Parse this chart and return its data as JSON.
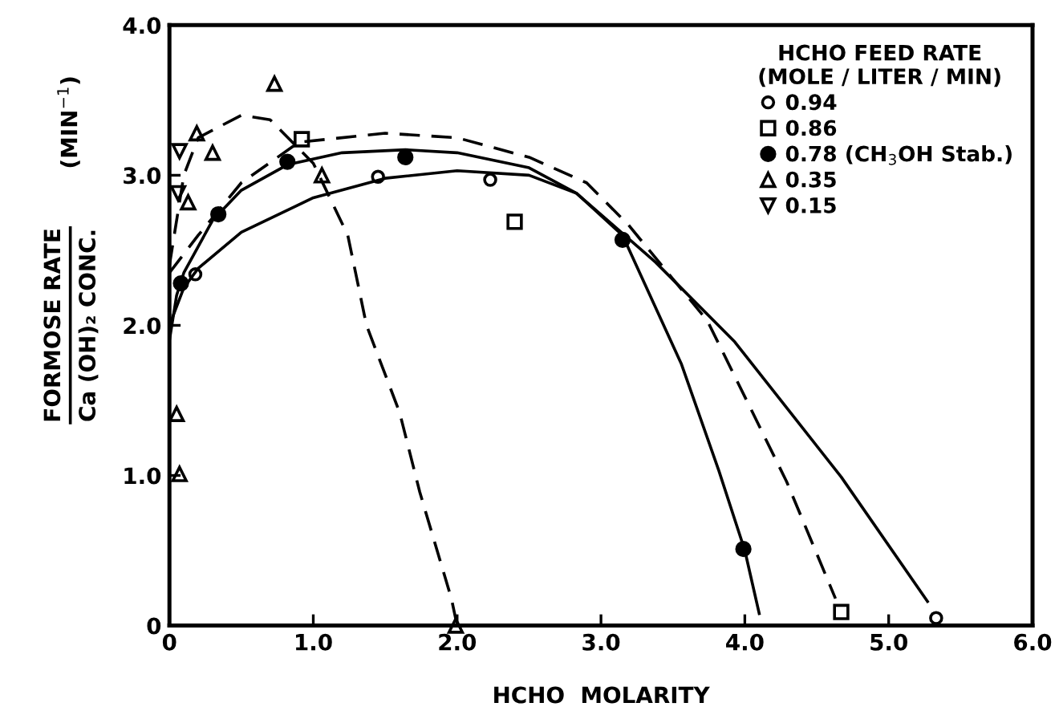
{
  "chart_data": {
    "type": "scatter",
    "xlabel": "HCHO  MOLARITY",
    "ylabel": "FORMOSE RATE\nCa (OH)₂ CONC.",
    "annotations": [
      "(MIN$^{−1}$)"
    ],
    "legend_title": "HCHO FEED RATE\n(MOLE / LITER / MIN)",
    "legend": "top right",
    "grid": false,
    "xlim": [
      0,
      6
    ],
    "ylim": [
      0,
      4
    ],
    "xticks": [
      0,
      {
        "value": 1,
        "label": "1.0"
      },
      {
        "value": 2,
        "label": "2.0"
      },
      {
        "value": 3,
        "label": "3.0"
      },
      {
        "value": 4,
        "label": "4.0"
      },
      {
        "value": 5,
        "label": "5.0"
      },
      {
        "value": 6,
        "label": "6.0"
      }
    ],
    "yticks": [
      0,
      {
        "value": 1,
        "label": "1.0"
      },
      {
        "value": 2,
        "label": "2.0"
      },
      {
        "value": 3,
        "label": "3.0"
      },
      {
        "value": 4,
        "label": "4.0"
      }
    ],
    "series": [
      {
        "name": "0.94",
        "marker": "circle_open",
        "color": "#000000",
        "x": [
          0.18,
          1.45,
          2.23,
          5.33
        ],
        "values": [
          2.34,
          2.99,
          2.97,
          0.05
        ]
      },
      {
        "name": "0.86",
        "marker": "square",
        "color": "#000000",
        "x": [
          0.92,
          2.4,
          4.67
        ],
        "values": [
          3.24,
          2.69,
          0.09
        ]
      },
      {
        "name": "0.78 (CH$_{3}$OH Stab.)",
        "marker": "circle",
        "color": "#000000",
        "x": [
          0.08,
          0.34,
          0.82,
          1.64,
          3.15,
          3.99
        ],
        "values": [
          2.28,
          2.74,
          3.09,
          3.12,
          2.57,
          0.51
        ]
      },
      {
        "name": "0.35",
        "marker": "triangle",
        "color": "#000000",
        "x": [
          0.05,
          0.07,
          0.13,
          0.19,
          0.3,
          0.73,
          1.06,
          1.99
        ],
        "values": [
          1.41,
          1.01,
          2.82,
          3.28,
          3.15,
          3.61,
          3.0,
          0.0
        ]
      },
      {
        "name": "0.15",
        "marker": "triangle_down",
        "color": "#000000",
        "x": [
          0.06,
          0.07
        ],
        "values": [
          2.88,
          3.16
        ]
      },
      {
        "type": "line",
        "line_style": "solid",
        "color": "#000000",
        "x": [
          0,
          0.1,
          0.2,
          0.5,
          1.0,
          1.5,
          2.0,
          2.5,
          2.83,
          3.38,
          3.93,
          4.67,
          5.27
        ],
        "values": [
          2.0,
          2.25,
          2.38,
          2.62,
          2.85,
          2.98,
          3.03,
          3.0,
          2.88,
          2.42,
          1.89,
          0.99,
          0.16
        ]
      },
      {
        "type": "line",
        "line_style": "dashed",
        "color": "#000000",
        "x": [
          0,
          0.2,
          0.5,
          0.9,
          1.5,
          2.0,
          2.5,
          2.9,
          3.19,
          3.74,
          4.29,
          4.63
        ],
        "values": [
          2.35,
          2.6,
          2.95,
          3.22,
          3.28,
          3.25,
          3.12,
          2.95,
          2.67,
          2.03,
          0.96,
          0.18
        ]
      },
      {
        "type": "line",
        "line_style": "solid",
        "color": "#000000",
        "x": [
          0,
          0.05,
          0.1,
          0.3,
          0.5,
          0.82,
          1.2,
          1.64,
          2.0,
          2.5,
          2.83,
          3.15,
          3.56,
          3.82,
          4.0,
          4.1
        ],
        "values": [
          1.9,
          2.2,
          2.35,
          2.7,
          2.9,
          3.07,
          3.15,
          3.17,
          3.15,
          3.05,
          2.88,
          2.6,
          1.74,
          1.03,
          0.5,
          0.08
        ]
      },
      {
        "type": "line",
        "line_style": "dashed",
        "color": "#000000",
        "x": [
          0,
          0.1,
          0.2,
          0.5,
          0.7,
          1.0,
          1.24,
          1.37,
          1.6,
          1.74,
          1.96,
          2.0
        ],
        "values": [
          2.4,
          3.0,
          3.25,
          3.4,
          3.37,
          3.08,
          2.6,
          2.0,
          1.42,
          0.89,
          0.18,
          0.0
        ]
      }
    ]
  }
}
